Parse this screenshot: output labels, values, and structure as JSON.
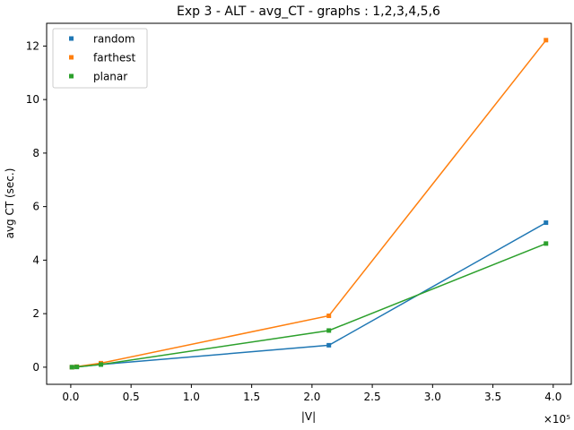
{
  "chart_data": {
    "type": "line",
    "title": "Exp 3 - ALT - avg_CT - graphs : 1,2,3,4,5,6",
    "xlabel": "|V|",
    "ylabel": "avg CT (sec.)",
    "x_offset_label": "×10⁵",
    "xlim": [
      -0.2,
      4.15
    ],
    "ylim": [
      -0.64,
      12.85
    ],
    "x_ticks": [
      0.0,
      0.5,
      1.0,
      1.5,
      2.0,
      2.5,
      3.0,
      3.5,
      4.0
    ],
    "x_tick_labels": [
      "0.0",
      "0.5",
      "1.0",
      "1.5",
      "2.0",
      "2.5",
      "3.0",
      "3.5",
      "4.0"
    ],
    "y_ticks": [
      0,
      2,
      4,
      6,
      8,
      10,
      12
    ],
    "y_tick_labels": [
      "0",
      "2",
      "4",
      "6",
      "8",
      "10",
      "12"
    ],
    "grid": false,
    "legend_position": "top-left",
    "series": [
      {
        "name": "random",
        "color": "#1f77b4",
        "x": [
          0.01,
          0.05,
          0.25,
          2.14,
          3.94
        ],
        "y": [
          0.0,
          0.01,
          0.1,
          0.82,
          5.4
        ]
      },
      {
        "name": "farthest",
        "color": "#ff7f0e",
        "x": [
          0.01,
          0.05,
          0.25,
          2.14,
          3.94
        ],
        "y": [
          0.0,
          0.02,
          0.15,
          1.92,
          12.22
        ]
      },
      {
        "name": "planar",
        "color": "#2ca02c",
        "x": [
          0.01,
          0.05,
          0.25,
          2.14,
          3.94
        ],
        "y": [
          0.0,
          0.01,
          0.1,
          1.37,
          4.62
        ]
      }
    ]
  }
}
